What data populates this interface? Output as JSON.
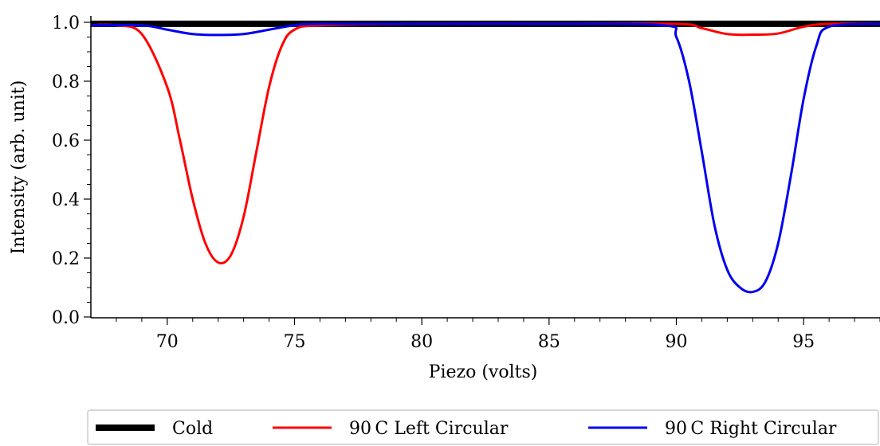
{
  "chart_data": {
    "type": "line",
    "xlabel": "Piezo (volts)",
    "ylabel": "Intensity (arb. unit)",
    "xlim": [
      67,
      98
    ],
    "ylim": [
      0,
      1.0
    ],
    "xticks": [
      70,
      75,
      80,
      85,
      90,
      95
    ],
    "yticks": [
      0.0,
      0.2,
      0.4,
      0.6,
      0.8,
      1.0
    ],
    "xtick_labels": [
      "70",
      "75",
      "80",
      "85",
      "90",
      "95"
    ],
    "ytick_labels": [
      "0.0",
      "0.2",
      "0.4",
      "0.6",
      "0.8",
      "1.0"
    ],
    "grid": false,
    "legend_position": "bottom, outside, 3 columns",
    "series": [
      {
        "name": "Cold",
        "color": "#000000",
        "x": [
          67,
          70,
          75,
          80,
          85,
          90,
          95,
          98
        ],
        "y": [
          0.995,
          0.995,
          0.995,
          0.995,
          0.995,
          0.995,
          0.995,
          0.995
        ]
      },
      {
        "name": "90 C Left Circular",
        "color": "#ff0000",
        "x": [
          67,
          68,
          69,
          70,
          70.5,
          71,
          71.5,
          72,
          72.5,
          73,
          73.5,
          74,
          74.5,
          75,
          76,
          80,
          85,
          90,
          91,
          92,
          93,
          94,
          95,
          96,
          98
        ],
        "y": [
          0.99,
          0.99,
          0.96,
          0.78,
          0.6,
          0.4,
          0.25,
          0.185,
          0.21,
          0.34,
          0.56,
          0.78,
          0.92,
          0.975,
          0.99,
          0.995,
          0.995,
          0.995,
          0.98,
          0.96,
          0.958,
          0.962,
          0.985,
          0.995,
          0.995
        ]
      },
      {
        "name": "90 C Right Circular",
        "color": "#0000ee",
        "x": [
          67,
          69,
          70,
          71,
          72,
          73,
          74,
          75,
          76,
          80,
          85,
          89.5,
          90,
          90.5,
          91,
          91.5,
          92,
          92.5,
          93,
          93.5,
          94,
          94.5,
          95,
          95.5,
          96,
          98
        ],
        "y": [
          0.99,
          0.99,
          0.975,
          0.96,
          0.957,
          0.96,
          0.975,
          0.99,
          0.995,
          0.995,
          0.995,
          0.99,
          0.95,
          0.8,
          0.56,
          0.31,
          0.16,
          0.1,
          0.085,
          0.12,
          0.25,
          0.48,
          0.74,
          0.92,
          0.985,
          0.995
        ]
      }
    ]
  }
}
